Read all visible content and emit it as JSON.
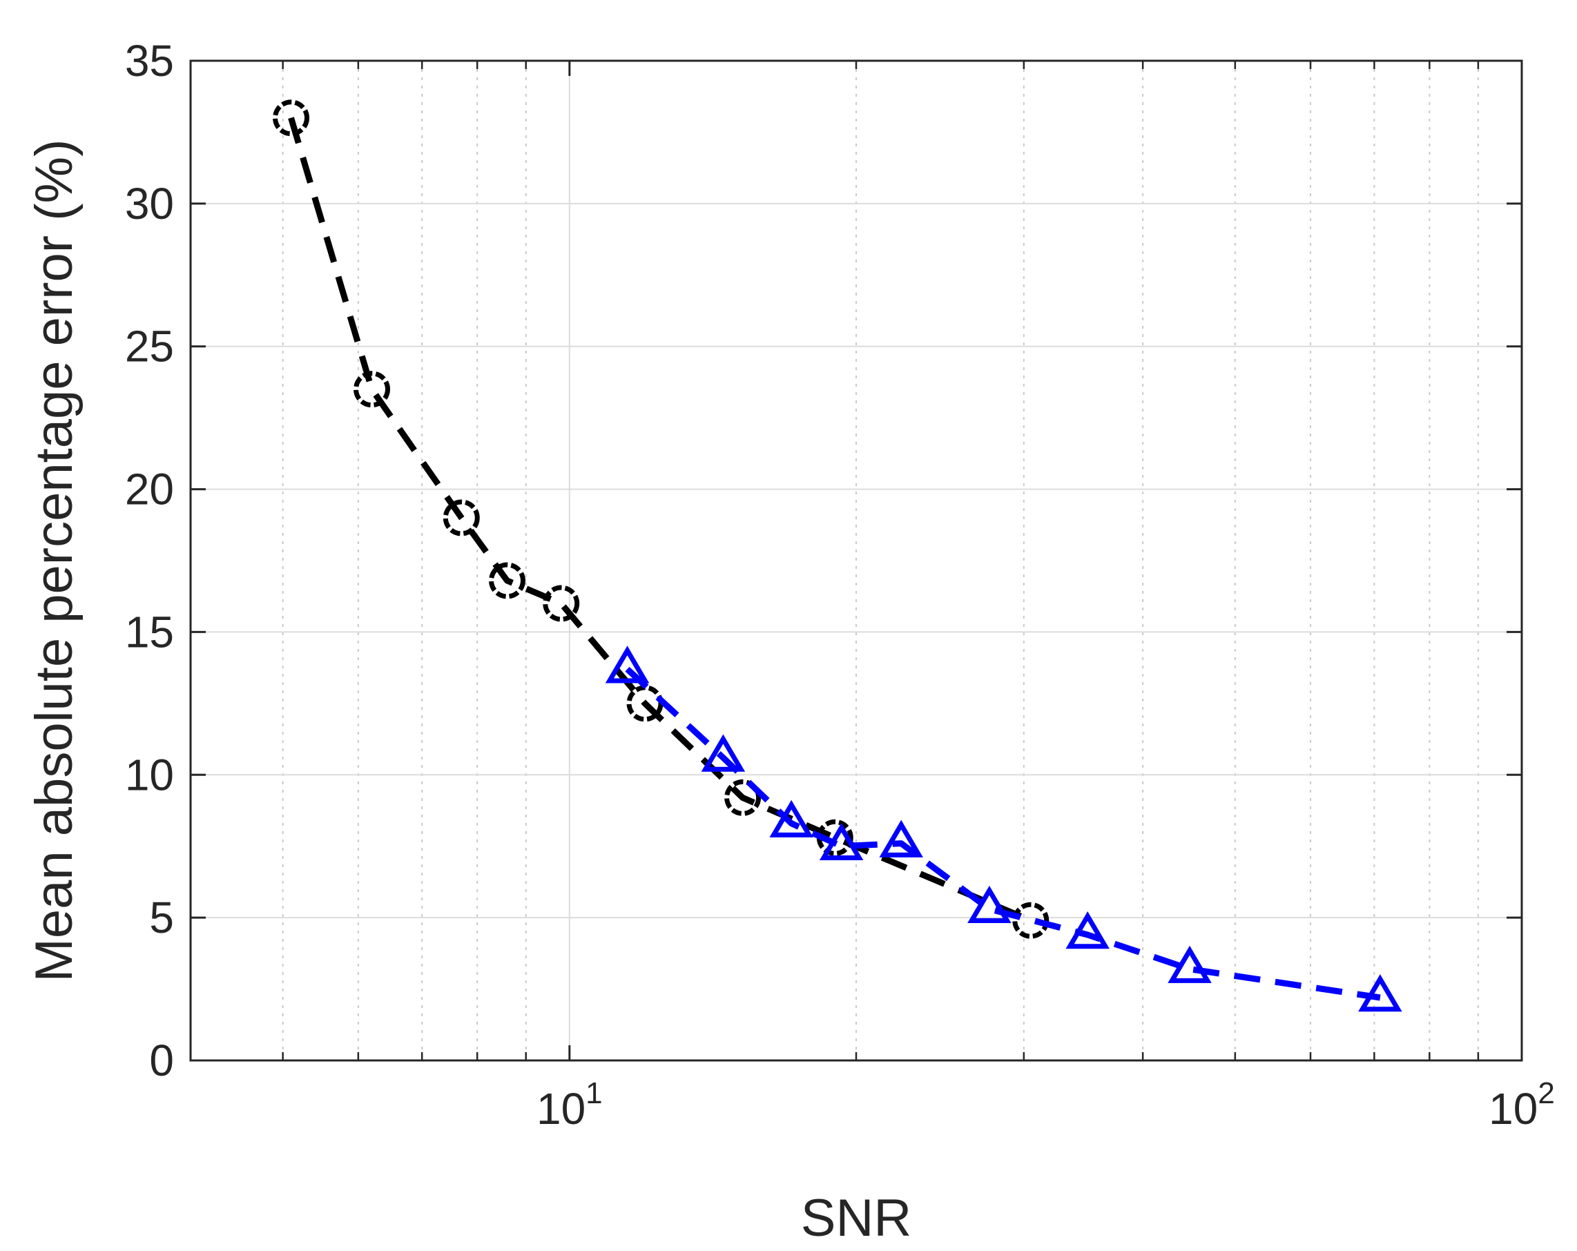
{
  "chart_data": {
    "type": "line",
    "title": "",
    "xlabel": "SNR",
    "ylabel": "Mean absolute percentage error (%)",
    "xscale": "log",
    "xlim": [
      4,
      100
    ],
    "ylim": [
      0,
      35
    ],
    "grid": true,
    "x_ticks": [
      {
        "value": 10,
        "base": "10",
        "exp": "1"
      },
      {
        "value": 100,
        "base": "10",
        "exp": "2"
      }
    ],
    "y_ticks": [
      0,
      5,
      10,
      15,
      20,
      25,
      30,
      35
    ],
    "series": [
      {
        "color": "#000000",
        "marker": "circle",
        "line_style": "dashed",
        "x": [
          5.1,
          6.2,
          7.7,
          8.6,
          9.8,
          12.0,
          15.2,
          19.0,
          30.5
        ],
        "y": [
          33.0,
          23.5,
          19.0,
          16.8,
          16.0,
          12.5,
          9.2,
          7.8,
          4.9
        ]
      },
      {
        "color": "#0000ff",
        "marker": "triangle",
        "line_style": "dashed",
        "x": [
          11.5,
          14.5,
          17.1,
          19.3,
          22.3,
          27.6,
          35.0,
          44.8,
          71.0
        ],
        "y": [
          13.7,
          10.6,
          8.3,
          7.5,
          7.6,
          5.3,
          4.4,
          3.2,
          2.2
        ]
      }
    ]
  }
}
